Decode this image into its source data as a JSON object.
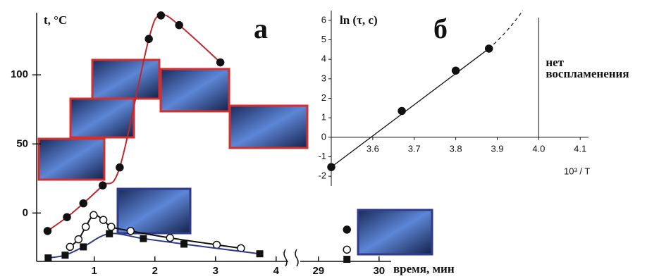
{
  "chart_data": [
    {
      "type": "line",
      "panel_label": "а",
      "ylabel": "t, °C",
      "xlabel": "время, мин",
      "xlim": [
        0.05,
        4.2
      ],
      "x2lim": [
        28.7,
        30.2
      ],
      "ylim": [
        -35,
        145
      ],
      "xticks": [
        1,
        2,
        3,
        4
      ],
      "x2ticks": [
        29,
        30
      ],
      "yticks": [
        0,
        50,
        100
      ],
      "series": [
        {
          "color": "#c0272d",
          "marker": "circle-filled",
          "line": true,
          "x": [
            0.23,
            0.55,
            0.82,
            1.14,
            1.42,
            1.9,
            2.1,
            2.4,
            3.08
          ],
          "values": [
            -13,
            -3,
            7,
            20,
            33,
            126,
            143,
            136,
            109
          ]
        },
        {
          "color": "#111111",
          "marker": "circle-open",
          "line": true,
          "x": [
            0.6,
            0.74,
            0.86,
            0.99,
            1.15,
            1.28,
            1.6,
            2.25,
            3.02,
            3.42
          ],
          "values": [
            -24.5,
            -19,
            -10,
            -1.5,
            -5,
            -10,
            -13,
            -18,
            -23,
            -25.5
          ]
        },
        {
          "color": "#2e3a8c",
          "marker": "square",
          "line": true,
          "x": [
            0.24,
            0.52,
            0.82,
            1.25,
            1.81,
            2.48,
            3.73
          ],
          "values": [
            -32.5,
            -30.5,
            -24.5,
            -15,
            -18.5,
            -22.5,
            -29.5
          ]
        },
        {
          "color": "#111111",
          "marker": "circle-filled",
          "line": false,
          "axis": "x2",
          "x": [
            29.47
          ],
          "values": [
            -12
          ]
        },
        {
          "color": "#111111",
          "marker": "circle-open",
          "line": false,
          "axis": "x2",
          "x": [
            29.47
          ],
          "values": [
            -26.5
          ]
        },
        {
          "color": "#111111",
          "marker": "square",
          "line": false,
          "axis": "x2",
          "x": [
            29.47
          ],
          "values": [
            -33.5
          ]
        }
      ]
    },
    {
      "type": "scatter",
      "panel_label": "б",
      "ylabel": "ln (τ, c)",
      "xlabel": "10³ / T",
      "xlim": [
        3.5,
        4.12
      ],
      "ylim": [
        -2.5,
        6.5
      ],
      "xticks": [
        3.6,
        3.7,
        3.8,
        3.9,
        {
          "value": 4,
          "label": "4.0"
        },
        4.1
      ],
      "yticks": [
        -2,
        -1,
        0,
        1,
        2,
        3,
        4,
        5,
        6
      ],
      "color": "#111111",
      "x": [
        3.5,
        3.67,
        3.8,
        3.88
      ],
      "values": [
        -1.53,
        1.35,
        3.42,
        4.55
      ],
      "annotation": {
        "x": 4,
        "lines": [
          "нет",
          "воспламенения"
        ]
      }
    }
  ]
}
